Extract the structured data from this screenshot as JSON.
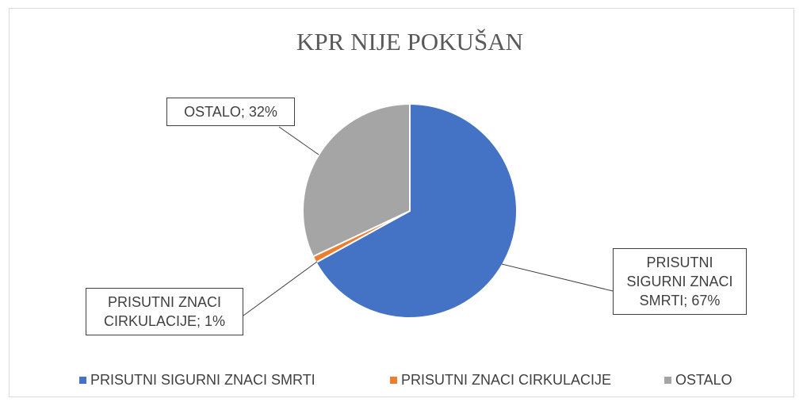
{
  "chart_data": {
    "type": "pie",
    "title": "KPR NIJE POKUŠAN",
    "categories": [
      "PRISUTNI SIGURNI ZNACI SMRTI",
      "PRISUTNI ZNACI CIRKULACIJE",
      "OSTALO"
    ],
    "values": [
      67,
      1,
      32
    ],
    "value_labels": [
      "PRISUTNI SIGURNI ZNACI SMRTI; 67%",
      "PRISUTNI ZNACI CIRKULACIJE; 1%",
      "OSTALO; 32%"
    ],
    "colors": [
      "#4472c4",
      "#ed7d31",
      "#a5a5a5"
    ],
    "legend": "bottom"
  }
}
